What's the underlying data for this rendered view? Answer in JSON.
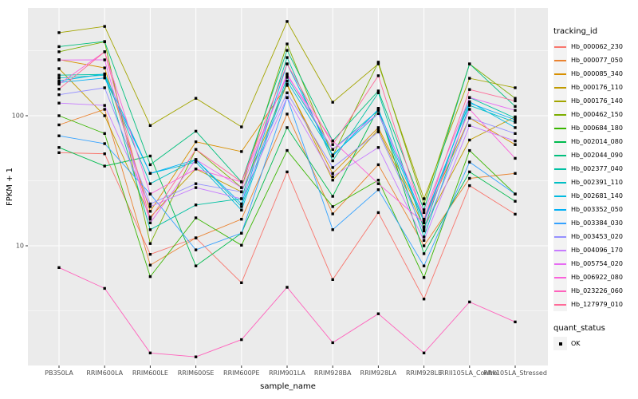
{
  "figure": {
    "background": "#FFFFFF",
    "panel_bg": "#EBEBEB",
    "grid_color": "#FFFFFF",
    "tick_color": "#333333",
    "tick_label_color": "#4D4D4D",
    "axis_title_color": "#000000"
  },
  "chart_data": {
    "type": "line",
    "title": "",
    "xlabel": "sample_name",
    "ylabel": "FPKM + 1",
    "y_scale": "log10",
    "y_ticks_labeled": [
      "10",
      "100"
    ],
    "ylim": [
      1.2,
      670
    ],
    "grid": true,
    "legend_position": "right",
    "legend_color_title": "tracking_id",
    "legend_shape_title": "quant_status",
    "legend_shape_items": [
      {
        "label": "OK",
        "marker": "square",
        "color": "#000000"
      }
    ],
    "point_color": "#000000",
    "categories": [
      "PB350LA",
      "RRIM600LA",
      "RRIM600LE",
      "RRIM600SE",
      "RRIM600PE",
      "RRIM901LA",
      "RRIM928BA",
      "RRIM928LA",
      "RRIM928LE",
      "RRII105LA_Control",
      "RRII105LA_Stressed"
    ],
    "series": [
      {
        "name": "Hb_000062_230",
        "color": "#F8766D",
        "values": [
          52,
          51,
          8.6,
          11.5,
          5.2,
          37,
          5.5,
          18,
          3.9,
          29,
          17.5
        ]
      },
      {
        "name": "Hb_000077_050",
        "color": "#EA8331",
        "values": [
          85,
          112,
          7.1,
          11.5,
          16,
          103,
          17.6,
          42,
          10,
          33,
          36
        ]
      },
      {
        "name": "Hb_000085_340",
        "color": "#D89000",
        "values": [
          270,
          233,
          18.4,
          63,
          53,
          171,
          36,
          81,
          15.9,
          96,
          60
        ]
      },
      {
        "name": "Hb_000176_110",
        "color": "#C09B00",
        "values": [
          230,
          100,
          16.6,
          39,
          26,
          175,
          32,
          78,
          14,
          65,
          98
        ]
      },
      {
        "name": "Hb_000176_140",
        "color": "#A3A500",
        "values": [
          435,
          486,
          84,
          136,
          82,
          530,
          127,
          250,
          23,
          194,
          164
        ]
      },
      {
        "name": "Hb_000462_150",
        "color": "#7CAE00",
        "values": [
          310,
          370,
          10.4,
          55,
          28,
          356,
          49,
          258,
          21,
          250,
          136
        ]
      },
      {
        "name": "Hb_000684_180",
        "color": "#39B600",
        "values": [
          100,
          73,
          5.8,
          16.4,
          10.1,
          54,
          20,
          32,
          5.7,
          54,
          25
        ]
      },
      {
        "name": "Hb_002014_080",
        "color": "#00BB4E",
        "values": [
          57,
          41,
          49,
          7.0,
          12.5,
          81,
          24,
          114,
          8.7,
          37,
          22
        ]
      },
      {
        "name": "Hb_002044_090",
        "color": "#00BF7D",
        "values": [
          340,
          372,
          42,
          76,
          31,
          318,
          64,
          155,
          18.9,
          250,
          118
        ]
      },
      {
        "name": "Hb_002377_040",
        "color": "#00C1A3",
        "values": [
          205,
          208,
          13.3,
          20.6,
          23,
          280,
          45,
          150,
          13.5,
          138,
          96
        ]
      },
      {
        "name": "Hb_002391_110",
        "color": "#00BFC4",
        "values": [
          195,
          205,
          30,
          46,
          20,
          197,
          55,
          110,
          11.7,
          120,
          89
        ]
      },
      {
        "name": "Hb_002681_140",
        "color": "#00BAE0",
        "values": [
          185,
          210,
          36,
          44,
          18.8,
          185,
          50,
          104,
          15.3,
          128,
          81
        ]
      },
      {
        "name": "Hb_003352_050",
        "color": "#00B0F6",
        "values": [
          180,
          195,
          36,
          46,
          21,
          250,
          49,
          112,
          15.9,
          125,
          93
        ]
      },
      {
        "name": "Hb_003384_030",
        "color": "#35A2FF",
        "values": [
          70,
          61,
          25,
          9.3,
          12.5,
          138,
          13.3,
          27,
          7.0,
          44,
          25
        ]
      },
      {
        "name": "Hb_003453_020",
        "color": "#9590FF",
        "values": [
          145,
          164,
          21,
          30,
          26,
          150,
          40,
          75,
          13,
          96,
          73
        ]
      },
      {
        "name": "Hb_004096_170",
        "color": "#C77CFF",
        "values": [
          125,
          120,
          20,
          28,
          23,
          138,
          34,
          57,
          11,
          84,
          64
        ]
      },
      {
        "name": "Hb_005754_020",
        "color": "#E76BF3",
        "values": [
          268,
          269,
          15,
          46,
          28,
          210,
          55,
          104,
          18,
          138,
          110
        ]
      },
      {
        "name": "Hb_006922_080",
        "color": "#FA62DB",
        "values": [
          175,
          310,
          25,
          39,
          31,
          203,
          64,
          30,
          15,
          112,
          47
        ]
      },
      {
        "name": "Hb_023226_060",
        "color": "#FF62BC",
        "values": [
          6.8,
          4.7,
          1.5,
          1.4,
          1.9,
          4.8,
          1.8,
          3.0,
          1.5,
          3.7,
          2.6
        ]
      },
      {
        "name": "Hb_127979_010",
        "color": "#FF6A98",
        "values": [
          160,
          310,
          16,
          55,
          31,
          250,
          60,
          203,
          16,
          159,
          130
        ]
      }
    ]
  }
}
